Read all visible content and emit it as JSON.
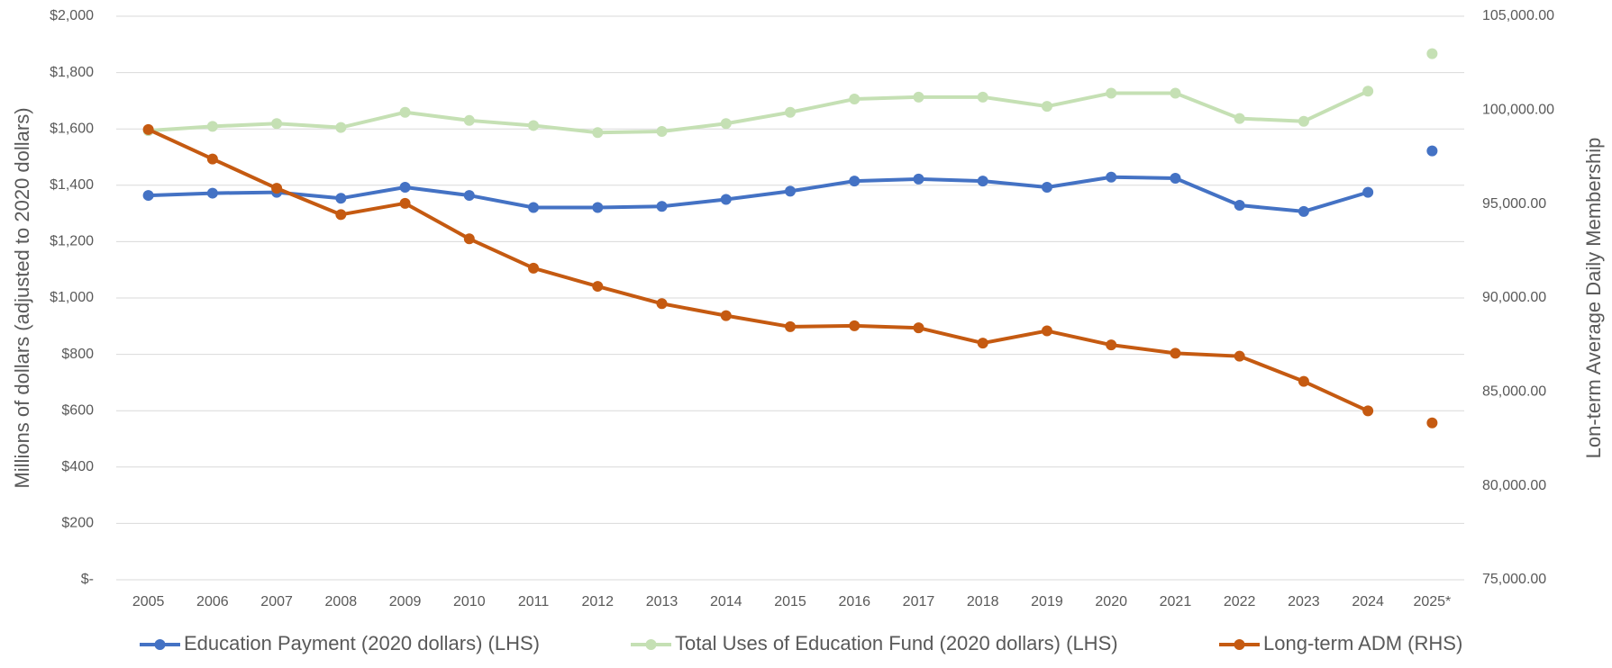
{
  "chart_data": {
    "type": "line",
    "categories": [
      "2005",
      "2006",
      "2007",
      "2008",
      "2009",
      "2010",
      "2011",
      "2012",
      "2013",
      "2014",
      "2015",
      "2016",
      "2017",
      "2018",
      "2019",
      "2020",
      "2021",
      "2022",
      "2023",
      "2024",
      "2025*"
    ],
    "connect_last": false,
    "y_label": "Millions of dollars (adjusted to 2020 dollars)",
    "y2_label": "Lon-term Average Daily Membership",
    "ylim": [
      0,
      2000
    ],
    "yticks": [
      {
        "value": 0,
        "label": "$-"
      },
      {
        "value": 200,
        "label": "$200"
      },
      {
        "value": 400,
        "label": "$400"
      },
      {
        "value": 600,
        "label": "$600"
      },
      {
        "value": 800,
        "label": "$800"
      },
      {
        "value": 1000,
        "label": "$1,000"
      },
      {
        "value": 1200,
        "label": "$1,200"
      },
      {
        "value": 1400,
        "label": "$1,400"
      },
      {
        "value": 1600,
        "label": "$1,600"
      },
      {
        "value": 1800,
        "label": "$1,800"
      },
      {
        "value": 2000,
        "label": "$2,000"
      }
    ],
    "y2lim": [
      75000,
      105000
    ],
    "y2ticks": [
      {
        "value": 75000,
        "label": "75,000.00"
      },
      {
        "value": 80000,
        "label": "80,000.00"
      },
      {
        "value": 85000,
        "label": "85,000.00"
      },
      {
        "value": 90000,
        "label": "90,000.00"
      },
      {
        "value": 95000,
        "label": "95,000.00"
      },
      {
        "value": 100000,
        "label": "100,000.00"
      },
      {
        "value": 105000,
        "label": "105,000.00"
      }
    ],
    "grid": true,
    "legend": "bottom",
    "series": [
      {
        "name": "Education Payment (2020 dollars) (LHS)",
        "color": "#4472c4",
        "axis": "y",
        "values": [
          1364,
          1372,
          1375,
          1354,
          1393,
          1364,
          1321,
          1321,
          1325,
          1350,
          1379,
          1415,
          1422,
          1415,
          1393,
          1429,
          1425,
          1329,
          1307,
          1375,
          1522
        ]
      },
      {
        "name": "Total Uses of Education Fund (2020 dollars) (LHS)",
        "color": "#c5e0b4",
        "axis": "y",
        "values": [
          1594,
          1609,
          1619,
          1605,
          1659,
          1630,
          1612,
          1587,
          1591,
          1619,
          1659,
          1706,
          1713,
          1713,
          1680,
          1727,
          1727,
          1637,
          1627,
          1734,
          1867
        ]
      },
      {
        "name": "Long-term ADM (RHS)",
        "color": "#c55a11",
        "axis": "y2",
        "values": [
          98970,
          97400,
          95840,
          94440,
          95040,
          93150,
          91590,
          90620,
          89700,
          89060,
          88470,
          88520,
          88410,
          87600,
          88250,
          87500,
          87060,
          86900,
          85560,
          83990,
          83350
        ]
      }
    ]
  }
}
